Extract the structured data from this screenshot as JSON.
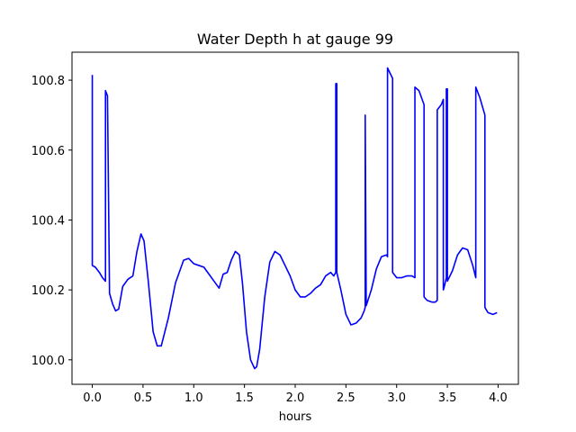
{
  "chart_data": {
    "type": "line",
    "title": "Water Depth h at gauge 99",
    "xlabel": "hours",
    "ylabel": "",
    "xlim": [
      -0.2,
      4.2
    ],
    "ylim": [
      99.93,
      100.88
    ],
    "xticks": [
      0.0,
      0.5,
      1.0,
      1.5,
      2.0,
      2.5,
      3.0,
      3.5,
      4.0
    ],
    "xtick_labels": [
      "0.0",
      "0.5",
      "1.0",
      "1.5",
      "2.0",
      "2.5",
      "3.0",
      "3.5",
      "4.0"
    ],
    "yticks": [
      100.0,
      100.2,
      100.4,
      100.6,
      100.8
    ],
    "ytick_labels": [
      "100.0",
      "100.2",
      "100.4",
      "100.6",
      "100.8"
    ],
    "grid": false,
    "series": [
      {
        "color": "#0000ff",
        "x": [
          0.0,
          0.0,
          0.03,
          0.07,
          0.1,
          0.13,
          0.13,
          0.15,
          0.15,
          0.17,
          0.2,
          0.23,
          0.26,
          0.3,
          0.35,
          0.4,
          0.44,
          0.48,
          0.51,
          0.55,
          0.6,
          0.64,
          0.68,
          0.75,
          0.82,
          0.9,
          0.95,
          1.0,
          1.05,
          1.1,
          1.15,
          1.2,
          1.25,
          1.29,
          1.33,
          1.37,
          1.41,
          1.45,
          1.48,
          1.52,
          1.56,
          1.6,
          1.62,
          1.65,
          1.7,
          1.75,
          1.8,
          1.85,
          1.9,
          1.95,
          2.0,
          2.05,
          2.1,
          2.15,
          2.2,
          2.25,
          2.3,
          2.35,
          2.38,
          2.4,
          2.4,
          2.41,
          2.41,
          2.45,
          2.5,
          2.55,
          2.6,
          2.65,
          2.68,
          2.69,
          2.69,
          2.7,
          2.75,
          2.8,
          2.85,
          2.9,
          2.91,
          2.91,
          2.96,
          2.96,
          3.0,
          3.05,
          3.1,
          3.15,
          3.18,
          3.18,
          3.22,
          3.27,
          3.27,
          3.3,
          3.35,
          3.38,
          3.4,
          3.4,
          3.44,
          3.46,
          3.46,
          3.47,
          3.49,
          3.49,
          3.5,
          3.5,
          3.55,
          3.6,
          3.65,
          3.7,
          3.75,
          3.78,
          3.78,
          3.82,
          3.87,
          3.87,
          3.9,
          3.95,
          3.99
        ],
        "y": [
          100.815,
          100.27,
          100.265,
          100.25,
          100.235,
          100.225,
          100.77,
          100.755,
          100.75,
          100.19,
          100.16,
          100.14,
          100.145,
          100.21,
          100.23,
          100.24,
          100.31,
          100.36,
          100.34,
          100.23,
          100.08,
          100.04,
          100.04,
          100.12,
          100.22,
          100.285,
          100.29,
          100.275,
          100.27,
          100.265,
          100.245,
          100.225,
          100.205,
          100.245,
          100.25,
          100.285,
          100.31,
          100.3,
          100.22,
          100.08,
          100.0,
          99.975,
          99.98,
          100.03,
          100.18,
          100.28,
          100.31,
          100.3,
          100.27,
          100.24,
          100.2,
          100.18,
          100.18,
          100.19,
          100.205,
          100.215,
          100.24,
          100.25,
          100.24,
          100.25,
          100.79,
          100.79,
          100.25,
          100.2,
          100.13,
          100.1,
          100.105,
          100.12,
          100.14,
          100.15,
          100.7,
          100.155,
          100.2,
          100.26,
          100.295,
          100.3,
          100.295,
          100.835,
          100.805,
          100.25,
          100.235,
          100.235,
          100.24,
          100.24,
          100.235,
          100.78,
          100.77,
          100.73,
          100.18,
          100.17,
          100.165,
          100.165,
          100.17,
          100.715,
          100.73,
          100.745,
          100.2,
          100.21,
          100.235,
          100.775,
          100.775,
          100.225,
          100.255,
          100.3,
          100.32,
          100.315,
          100.27,
          100.235,
          100.78,
          100.75,
          100.7,
          100.15,
          100.135,
          100.13,
          100.135
        ]
      }
    ]
  }
}
